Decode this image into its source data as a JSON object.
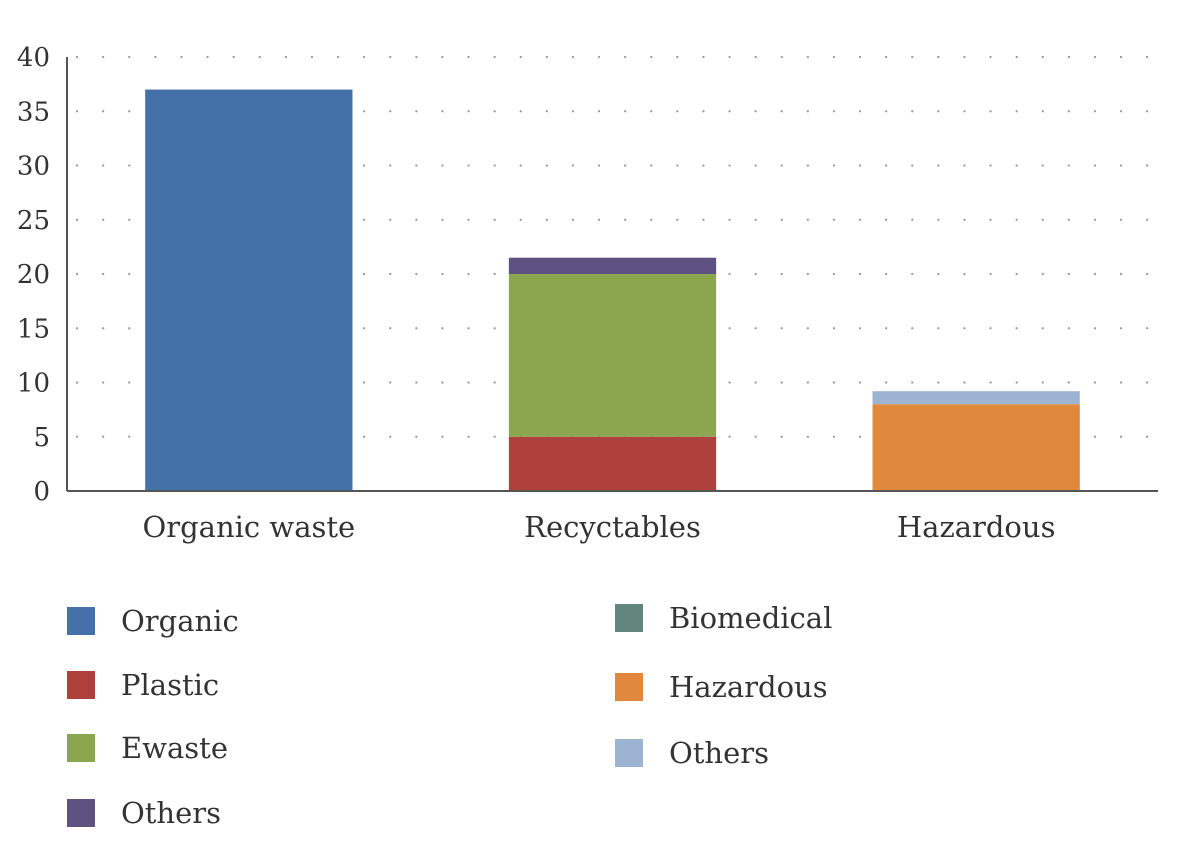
{
  "chart_data": {
    "type": "bar",
    "stacked": true,
    "categories": [
      "Organic waste",
      "Recyctables",
      "Hazardous"
    ],
    "ylim": [
      0,
      40
    ],
    "yticks": [
      0,
      5,
      10,
      15,
      20,
      25,
      30,
      35,
      40
    ],
    "grid": "dotted",
    "legend_position": "bottom",
    "series": [
      {
        "name": "Organic",
        "color": "#4472a8",
        "values": [
          37,
          0,
          0
        ]
      },
      {
        "name": "Plastic",
        "color": "#b0403c",
        "values": [
          0,
          5,
          0
        ]
      },
      {
        "name": "Ewaste",
        "color": "#8ca64f",
        "values": [
          0,
          15,
          0
        ]
      },
      {
        "name": "Others",
        "color": "#5f5283",
        "values": [
          0,
          1.5,
          0
        ]
      },
      {
        "name": "Biomedical",
        "color": "#62857d",
        "values": [
          0,
          0,
          0
        ]
      },
      {
        "name": "Hazardous",
        "color": "#e0893c",
        "values": [
          0,
          0,
          8
        ]
      },
      {
        "name": "Others",
        "color": "#9cb4d2",
        "values": [
          0,
          0,
          1.2
        ]
      }
    ],
    "legend": {
      "left": [
        {
          "label": "Organic",
          "color": "#4472a8"
        },
        {
          "label": "Plastic",
          "color": "#b0403c"
        },
        {
          "label": "Ewaste",
          "color": "#8ca64f"
        },
        {
          "label": "Others",
          "color": "#5f5283"
        }
      ],
      "right": [
        {
          "label": "Biomedical",
          "color": "#62857d"
        },
        {
          "label": "Hazardous",
          "color": "#e0893c"
        },
        {
          "label": "Others",
          "color": "#9cb4d2"
        }
      ]
    }
  }
}
